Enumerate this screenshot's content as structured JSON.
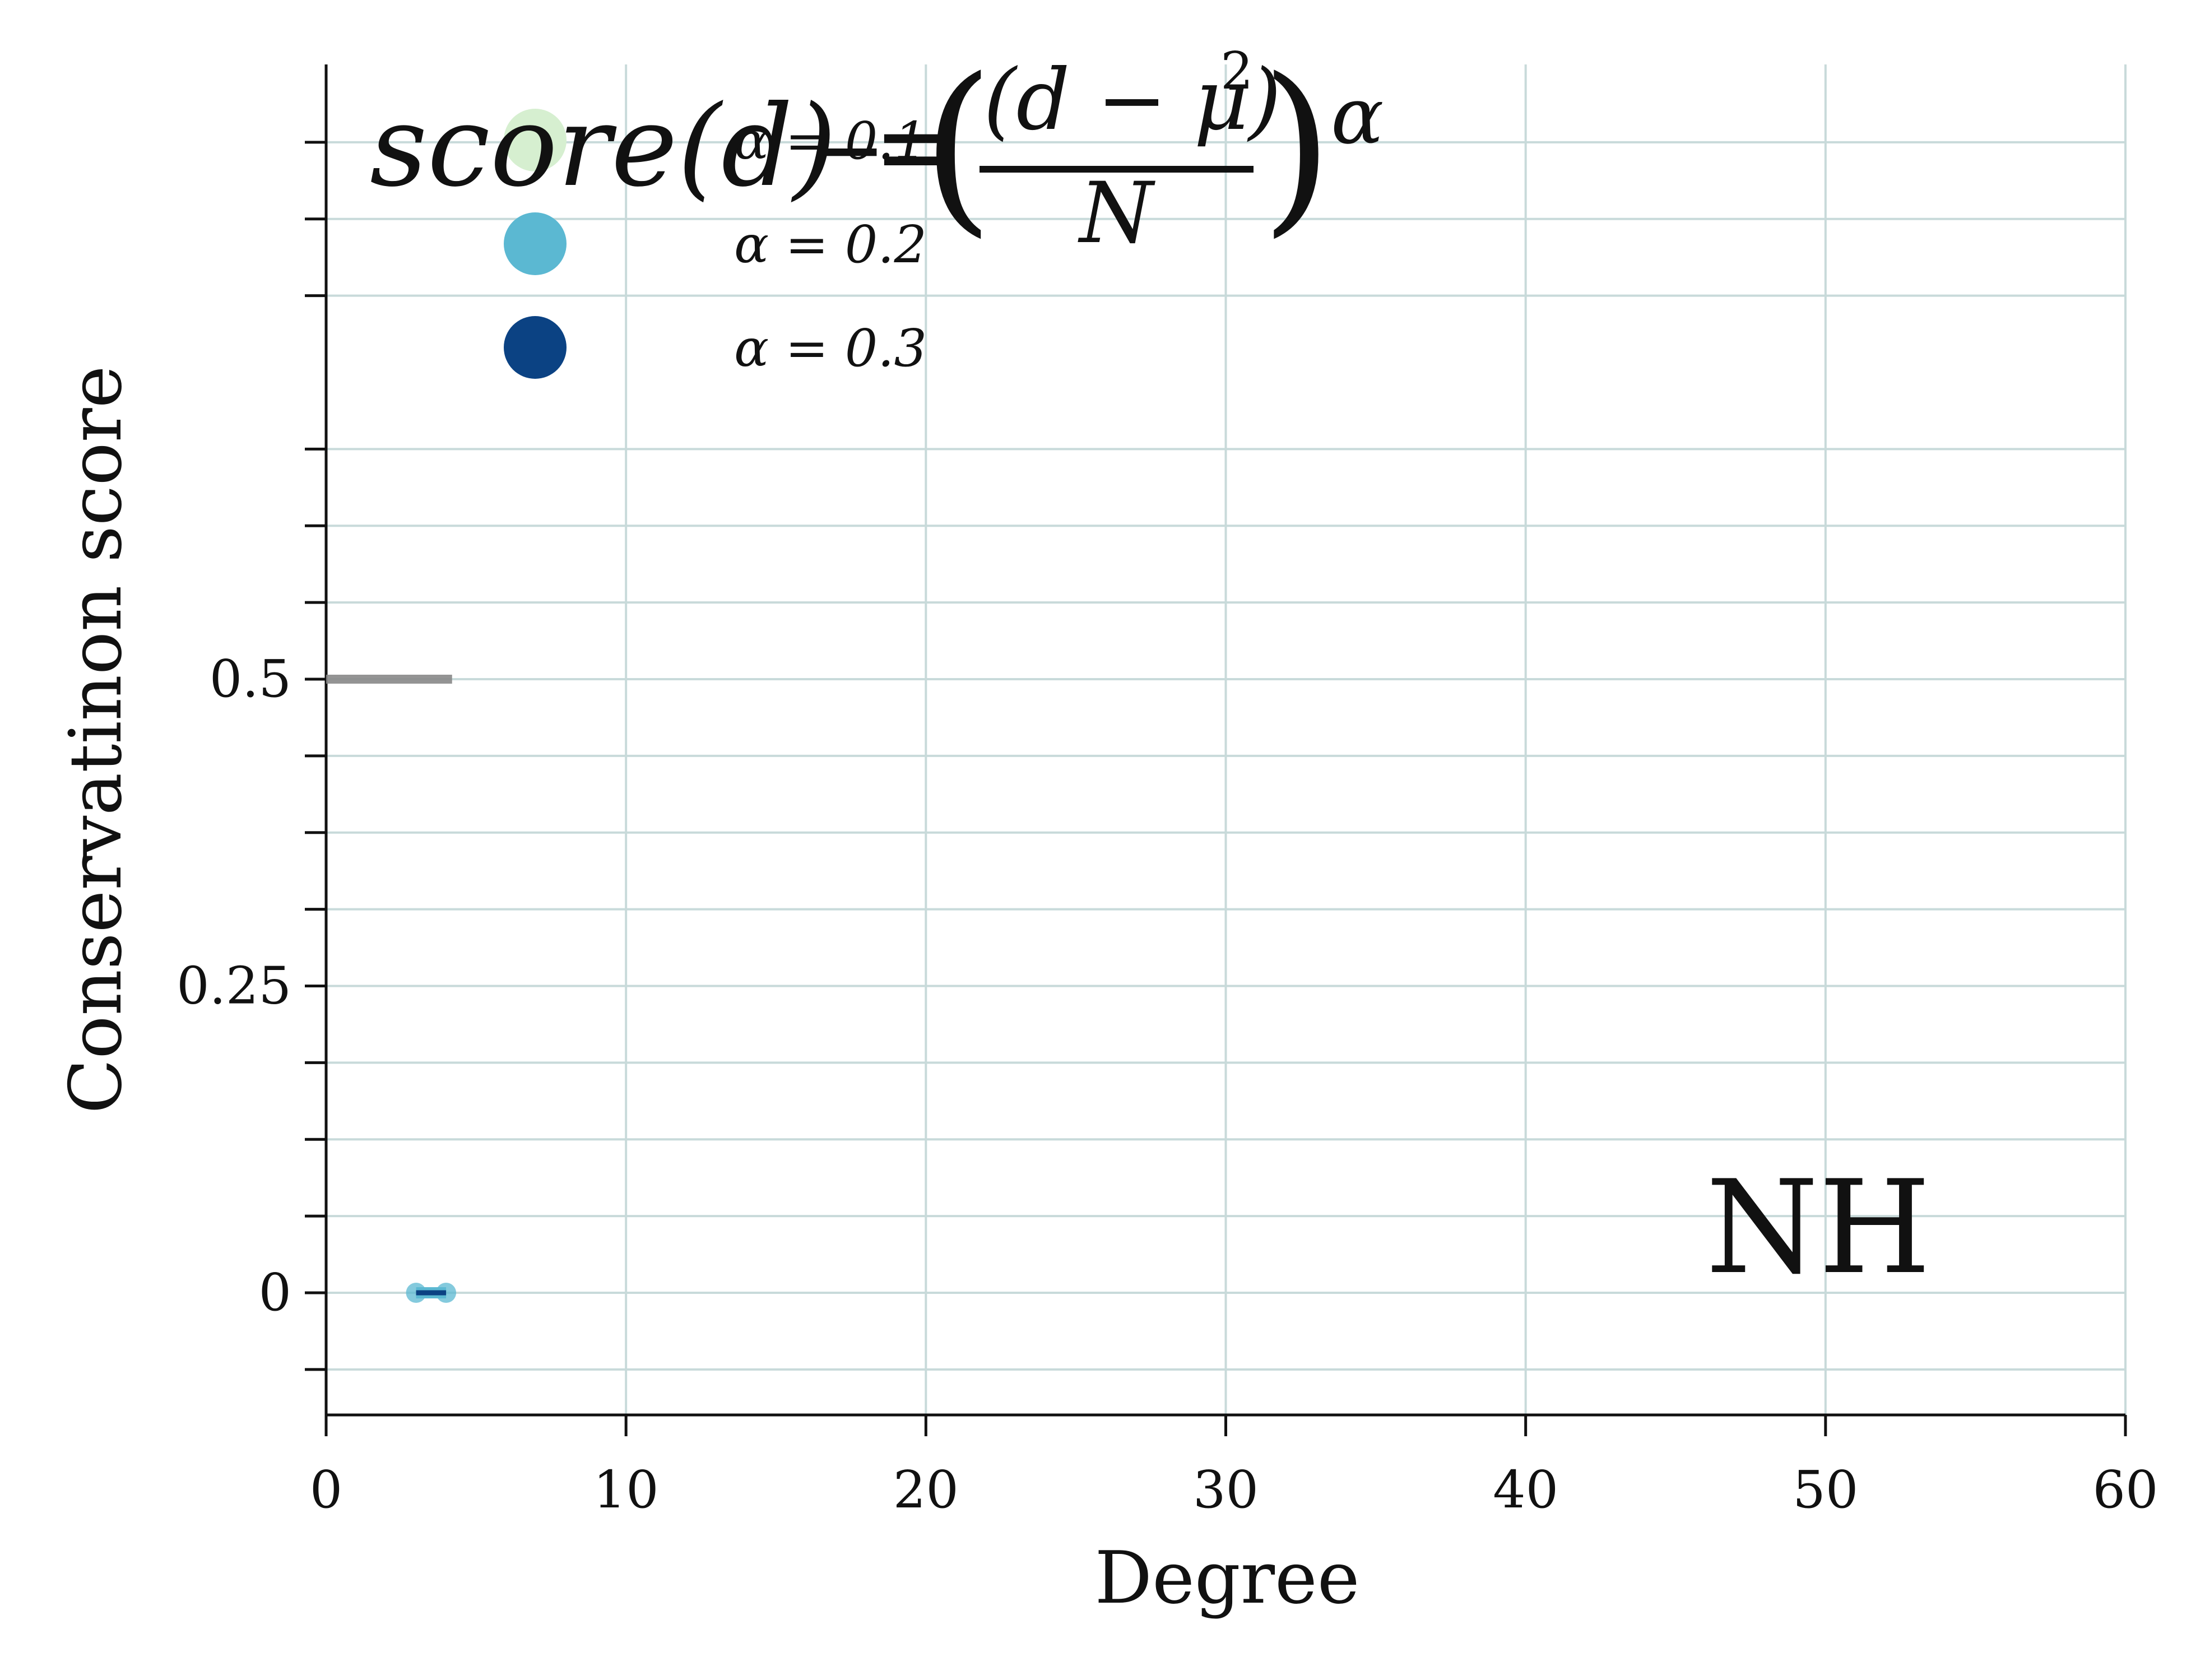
{
  "chart_data": {
    "type": "scatter",
    "xlabel": "Degree",
    "ylabel": "Conservatinon score",
    "xlim": [
      0,
      60
    ],
    "ylim": [
      -0.1,
      1.03
    ],
    "x_ticks": [
      0,
      10,
      20,
      30,
      40,
      50,
      60
    ],
    "x_tick_labels": [
      "0",
      "10",
      "20",
      "30",
      "40",
      "50",
      "60"
    ],
    "y_ticks": [
      0,
      0.25,
      0.5
    ],
    "y_tick_labels": [
      "0",
      "0.25",
      "0.5"
    ],
    "y_minor_ticks": [
      -0.0625,
      0.0625,
      0.125,
      0.1875,
      0.3125,
      0.375,
      0.4375,
      0.5625,
      0.625,
      0.6875,
      0.8125,
      0.875,
      0.9375
    ],
    "grid": true,
    "legend_position": "top-left",
    "series": [
      {
        "name": "α = 0.1",
        "color": "#d6efd0",
        "points": [],
        "line": []
      },
      {
        "name": "α = 0.2",
        "color": "#5bb8d2",
        "points": [
          [
            3,
            0
          ],
          [
            4,
            0
          ]
        ],
        "line": [
          [
            3,
            0
          ],
          [
            4,
            0
          ]
        ]
      },
      {
        "name": "α = 0.3",
        "color": "#0b4283",
        "points": [],
        "line": [
          [
            3,
            0
          ],
          [
            4,
            0
          ]
        ]
      }
    ],
    "reference_lines": [
      {
        "color": "#888888",
        "x": [
          0,
          4.2
        ],
        "y": 0.5
      }
    ],
    "formula": {
      "lhs": "score(d) =",
      "minus": "−",
      "numerator": "(d − μ)",
      "exponent": "2",
      "denominator": "N",
      "suffix": "α"
    },
    "panel_label": "NH"
  }
}
